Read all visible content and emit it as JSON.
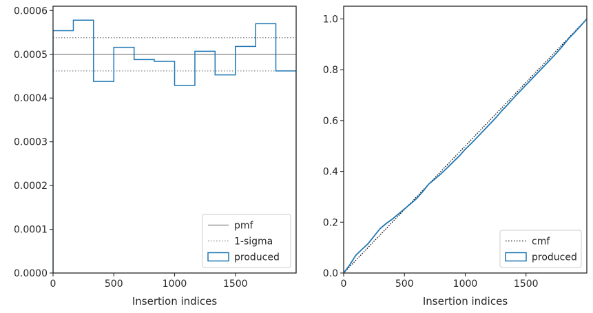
{
  "colors": {
    "produced": "#1f77b4",
    "pmf": "#808080",
    "sigma": "#808080",
    "cmf": "#000000",
    "axes": "#262626"
  },
  "chart_data": [
    {
      "type": "line",
      "subtype": "step-histogram",
      "xlabel": "Insertion indices",
      "ylabel": "",
      "xlim": [
        0,
        2000
      ],
      "ylim": [
        0,
        0.00061
      ],
      "x_ticks": [
        0,
        500,
        1000,
        1500
      ],
      "x_tick_labels": [
        "0",
        "500",
        "1000",
        "1500"
      ],
      "y_ticks": [
        0,
        0.0001,
        0.0002,
        0.0003,
        0.0004,
        0.0005,
        0.0006
      ],
      "y_tick_labels": [
        "0.0000",
        "0.0001",
        "0.0002",
        "0.0003",
        "0.0004",
        "0.0005",
        "0.0006"
      ],
      "legend": {
        "position": "lower right",
        "entries": [
          {
            "label": "pmf",
            "style": "solid-line"
          },
          {
            "label": "1-sigma",
            "style": "dotted-line"
          },
          {
            "label": "produced",
            "style": "patch"
          }
        ]
      },
      "pmf": 0.0005,
      "sigma_band": [
        0.000462,
        0.000538
      ],
      "produced": {
        "bin_edges": [
          0,
          167,
          333,
          500,
          667,
          833,
          1000,
          1167,
          1333,
          1500,
          1667,
          1833,
          2000
        ],
        "values": [
          0.000554,
          0.000578,
          0.000438,
          0.000516,
          0.000488,
          0.000484,
          0.000429,
          0.000507,
          0.000453,
          0.000518,
          0.00057,
          0.000462
        ]
      }
    },
    {
      "type": "line",
      "subtype": "step-cumulative",
      "xlabel": "Insertion indices",
      "ylabel": "",
      "xlim": [
        0,
        2000
      ],
      "ylim": [
        0,
        1.05
      ],
      "x_ticks": [
        0,
        500,
        1000,
        1500
      ],
      "x_tick_labels": [
        "0",
        "500",
        "1000",
        "1500"
      ],
      "y_ticks": [
        0,
        0.2,
        0.4,
        0.6,
        0.8,
        1.0
      ],
      "y_tick_labels": [
        "0.0",
        "0.2",
        "0.4",
        "0.6",
        "0.8",
        "1.0"
      ],
      "legend": {
        "position": "lower right",
        "entries": [
          {
            "label": "cmf",
            "style": "dotted-line"
          },
          {
            "label": "produced",
            "style": "patch"
          }
        ]
      },
      "cmf": {
        "x": [
          0,
          2000
        ],
        "y": [
          0,
          1.0
        ]
      },
      "produced": {
        "x": [
          0,
          50,
          100,
          150,
          200,
          250,
          300,
          350,
          400,
          450,
          500,
          550,
          600,
          650,
          700,
          750,
          800,
          850,
          900,
          950,
          1000,
          1050,
          1100,
          1150,
          1200,
          1250,
          1300,
          1350,
          1400,
          1450,
          1500,
          1550,
          1600,
          1650,
          1700,
          1750,
          1800,
          1850,
          1900,
          1950,
          2000
        ],
        "y": [
          0,
          0.032,
          0.07,
          0.093,
          0.115,
          0.145,
          0.175,
          0.195,
          0.212,
          0.232,
          0.252,
          0.272,
          0.293,
          0.32,
          0.35,
          0.37,
          0.39,
          0.413,
          0.437,
          0.46,
          0.487,
          0.51,
          0.535,
          0.56,
          0.585,
          0.61,
          0.638,
          0.663,
          0.69,
          0.715,
          0.74,
          0.765,
          0.79,
          0.815,
          0.84,
          0.865,
          0.893,
          0.922,
          0.947,
          0.973,
          1.0
        ]
      }
    }
  ]
}
